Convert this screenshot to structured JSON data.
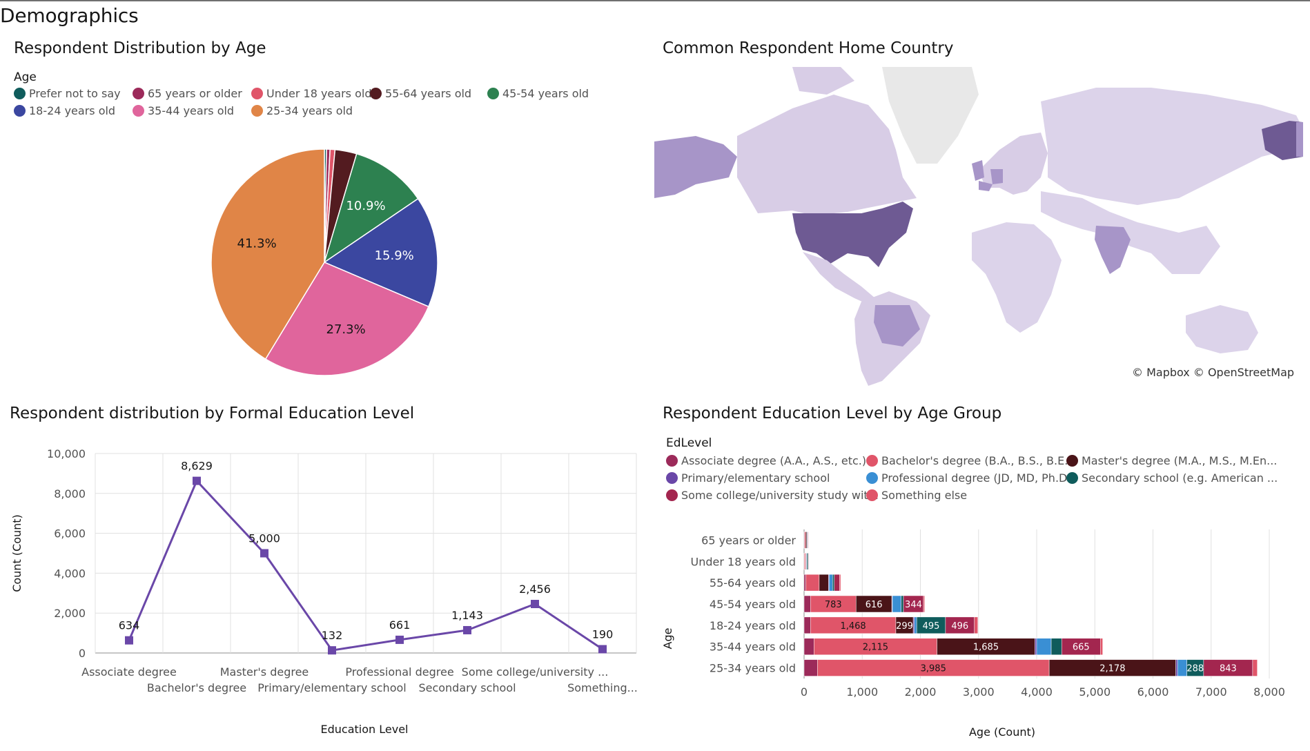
{
  "page": {
    "title": "Demographics"
  },
  "colors": {
    "prefer_not_to_say": "#0f5c5c",
    "sixty_five_plus": "#9c2a5a",
    "under_18": "#e05569",
    "fifty_five_64": "#531b20",
    "forty_five_54": "#2d8150",
    "eighteen_24": "#3b47a0",
    "thirty_five_44": "#e0659c",
    "twenty_five_34": "#e08547",
    "map_dark": "#6e5a93",
    "map_mid": "#a795c8",
    "map_light": "#dcd3ea",
    "map_grey": "#e8e8e8",
    "line": "#6a47a8"
  },
  "pie_panel": {
    "title": "Respondent Distribution by Age",
    "legend_title": "Age",
    "legend": [
      {
        "label": "Prefer not to say",
        "color": "#0f5c5c"
      },
      {
        "label": "65 years or older",
        "color": "#9c2a5a"
      },
      {
        "label": "Under 18 years old",
        "color": "#e05569"
      },
      {
        "label": "55-64 years old",
        "color": "#531b20"
      },
      {
        "label": "45-54 years old",
        "color": "#2d8150"
      },
      {
        "label": "18-24 years old",
        "color": "#3b47a0"
      },
      {
        "label": "35-44 years old",
        "color": "#e0659c"
      },
      {
        "label": "25-34 years old",
        "color": "#e08547"
      }
    ]
  },
  "map_panel": {
    "title": "Common Respondent Home Country",
    "credit": "© Mapbox © OpenStreetMap"
  },
  "line_panel": {
    "title": "Respondent distribution by Formal Education Level",
    "x_tick_labels": [
      "Associate degree",
      "Bachelor's degree",
      "Master's degree",
      "Primary/elementary school",
      "Professional degree",
      "Secondary school",
      "Some college/university ...",
      "Something..."
    ]
  },
  "bar_panel": {
    "title": "Respondent Education Level by Age Group",
    "legend_title": "EdLevel",
    "legend": [
      {
        "label": "Associate degree (A.A., A.S., etc.)",
        "color": "#9c2a5a"
      },
      {
        "label": "Bachelor's degree (B.A., B.S., B.E...",
        "color": "#e05569"
      },
      {
        "label": "Master's degree (M.A., M.S., M.En...",
        "color": "#4a1418"
      },
      {
        "label": "Primary/elementary school",
        "color": "#6a47a8"
      },
      {
        "label": "Professional degree (JD, MD, Ph.D...",
        "color": "#3a8fd4"
      },
      {
        "label": "Secondary school (e.g. American ...",
        "color": "#0f5c5c"
      },
      {
        "label": "Some college/university study wit...",
        "color": "#a3264f"
      },
      {
        "label": "Something else",
        "color": "#e05569"
      }
    ]
  },
  "chart_data": [
    {
      "type": "pie",
      "title": "Respondent Distribution by Age",
      "legend_title": "Age",
      "categories": [
        "Prefer not to say",
        "65 years or older",
        "Under 18 years old",
        "55-64 years old",
        "45-54 years old",
        "18-24 years old",
        "35-44 years old",
        "25-34 years old"
      ],
      "values": [
        0.3,
        0.5,
        0.7,
        3.1,
        10.9,
        15.9,
        27.3,
        41.3
      ],
      "labels": [
        "",
        "",
        "",
        "",
        "10.9%",
        "15.9%",
        "27.3%",
        "41.3%"
      ],
      "colors": [
        "#0f5c5c",
        "#9c2a5a",
        "#e05569",
        "#531b20",
        "#2d8150",
        "#3b47a0",
        "#e0659c",
        "#e08547"
      ]
    },
    {
      "type": "line",
      "title": "Respondent distribution by Formal Education Level",
      "xlabel": "Education Level",
      "ylabel": "Count (Count)",
      "categories": [
        "Associate degree",
        "Bachelor's degree",
        "Master's degree",
        "Primary/elementary school",
        "Professional degree",
        "Secondary school",
        "Some college/university ...",
        "Something..."
      ],
      "values": [
        634,
        8629,
        5000,
        132,
        661,
        1143,
        2456,
        190
      ],
      "value_labels": [
        "634",
        "8,629",
        "5,000",
        "132",
        "661",
        "1,143",
        "2,456",
        "190"
      ],
      "ylim": [
        0,
        10000
      ],
      "y_ticks": [
        "0",
        "2,000",
        "4,000",
        "6,000",
        "8,000",
        "10,000"
      ],
      "grid": true
    },
    {
      "type": "bar",
      "orientation": "horizontal",
      "stacked": true,
      "title": "Respondent Education Level by Age Group",
      "legend_title": "EdLevel",
      "xlabel": "Age (Count)",
      "ylabel": "Age",
      "categories": [
        "65 years or older",
        "Under 18 years old",
        "55-64 years old",
        "45-54 years old",
        "18-24 years old",
        "35-44 years old",
        "25-34 years old"
      ],
      "xlim": [
        0,
        8000
      ],
      "x_ticks": [
        "0",
        "1,000",
        "2,000",
        "3,000",
        "4,000",
        "5,000",
        "6,000",
        "7,000",
        "8,000"
      ],
      "series": [
        {
          "name": "Associate degree (A.A., A.S., etc.)",
          "color": "#9c2a5a",
          "values": [
            8,
            5,
            30,
            110,
            110,
            170,
            230
          ]
        },
        {
          "name": "Bachelor's degree (B.A., B.S., B.E...",
          "color": "#e05569",
          "values": [
            20,
            20,
            230,
            783,
            1468,
            2115,
            3985
          ]
        },
        {
          "name": "Master's degree (M.A., M.S., M.En...",
          "color": "#4a1418",
          "values": [
            20,
            8,
            160,
            616,
            299,
            1685,
            2178
          ]
        },
        {
          "name": "Primary/elementary school",
          "color": "#6a47a8",
          "values": [
            0,
            10,
            10,
            10,
            20,
            30,
            30
          ]
        },
        {
          "name": "Professional degree (JD, MD, Ph.D...",
          "color": "#3a8fd4",
          "values": [
            10,
            5,
            60,
            150,
            40,
            250,
            160
          ]
        },
        {
          "name": "Secondary school (e.g. American ...",
          "color": "#0f5c5c",
          "values": [
            5,
            20,
            30,
            40,
            495,
            180,
            288
          ]
        },
        {
          "name": "Some college/university study wit...",
          "color": "#a3264f",
          "values": [
            10,
            10,
            90,
            344,
            496,
            665,
            843
          ]
        },
        {
          "name": "Something else",
          "color": "#e05569",
          "values": [
            5,
            5,
            20,
            20,
            60,
            40,
            80
          ]
        }
      ],
      "segment_labels": [
        [],
        [],
        [],
        [
          "",
          "783",
          "616",
          "",
          "",
          "",
          "344",
          ""
        ],
        [
          "",
          "1,468",
          "299",
          "",
          "",
          "495",
          "496",
          ""
        ],
        [
          "",
          "2,115",
          "1,685",
          "",
          "",
          "",
          "665",
          ""
        ],
        [
          "",
          "3,985",
          "2,178",
          "",
          "",
          "288",
          "843",
          ""
        ]
      ]
    }
  ]
}
